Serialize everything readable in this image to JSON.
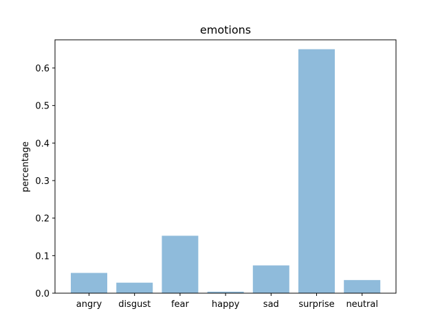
{
  "chart_data": {
    "type": "bar",
    "title": "emotions",
    "xlabel": "",
    "ylabel": "percentage",
    "categories": [
      "angry",
      "disgust",
      "fear",
      "happy",
      "sad",
      "surprise",
      "neutral"
    ],
    "values": [
      0.054,
      0.028,
      0.153,
      0.004,
      0.074,
      0.65,
      0.035
    ],
    "ylim": [
      0,
      0.675
    ],
    "yticks": [
      0.0,
      0.1,
      0.2,
      0.3,
      0.4,
      0.5,
      0.6
    ],
    "ytick_labels": [
      "0.0",
      "0.1",
      "0.2",
      "0.3",
      "0.4",
      "0.5",
      "0.6"
    ],
    "grid": false,
    "bar_color": "#8fbbdb"
  }
}
